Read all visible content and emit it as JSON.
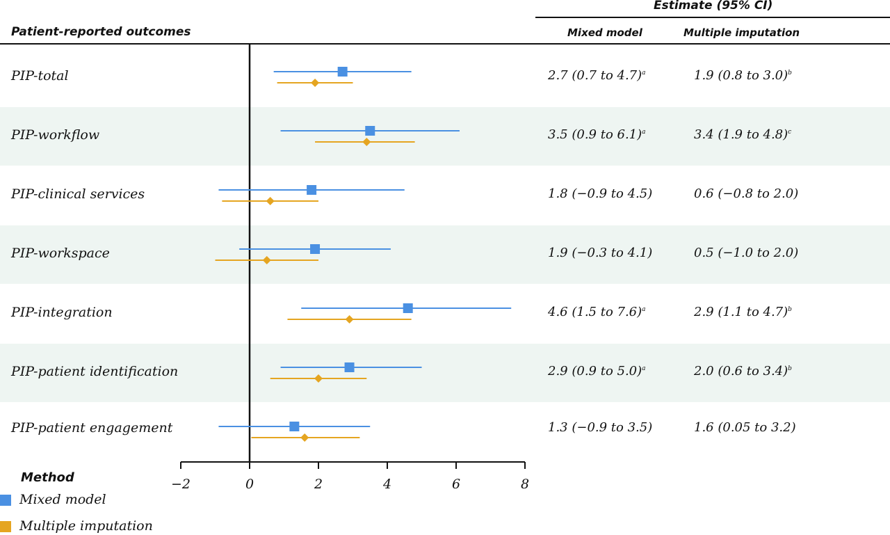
{
  "header": {
    "outcomes_title": "Patient-reported outcomes",
    "estimate_title": "Estimate (95% CI)",
    "col_mixed": "Mixed model",
    "col_mi": "Multiple imputation"
  },
  "colors": {
    "mixed": "#4a90e2",
    "mi": "#e5a521",
    "band": "#eef5f2",
    "axis": "#111111"
  },
  "legend": {
    "title": "Method",
    "items": [
      {
        "label": "Mixed model",
        "color": "#4a90e2"
      },
      {
        "label": "Multiple imputation",
        "color": "#e5a521"
      }
    ]
  },
  "rows": [
    {
      "label": "PIP-total",
      "mm_text": "2.7 (0.7 to 4.7)",
      "mm_sup": "a",
      "mi_text": "1.9 (0.8 to 3.0)",
      "mi_sup": "b"
    },
    {
      "label": "PIP-workflow",
      "mm_text": "3.5 (0.9 to 6.1)",
      "mm_sup": "a",
      "mi_text": "3.4 (1.9 to 4.8)",
      "mi_sup": "c"
    },
    {
      "label": "PIP-clinical services",
      "mm_text": "1.8 (−0.9 to 4.5)",
      "mm_sup": "",
      "mi_text": "0.6 (−0.8 to 2.0)",
      "mi_sup": ""
    },
    {
      "label": "PIP-workspace",
      "mm_text": "1.9 (−0.3 to 4.1)",
      "mm_sup": "",
      "mi_text": "0.5 (−1.0 to 2.0)",
      "mi_sup": ""
    },
    {
      "label": "PIP-integration",
      "mm_text": "4.6 (1.5 to 7.6)",
      "mm_sup": "a",
      "mi_text": "2.9 (1.1 to 4.7)",
      "mi_sup": "b"
    },
    {
      "label": "PIP-patient identification",
      "mm_text": "2.9 (0.9 to 5.0)",
      "mm_sup": "a",
      "mi_text": "2.0 (0.6 to 3.4)",
      "mi_sup": "b"
    },
    {
      "label": "PIP-patient engagement",
      "mm_text": "1.3 (−0.9 to 3.5)",
      "mm_sup": "",
      "mi_text": "1.6 (0.05 to 3.2)",
      "mi_sup": ""
    }
  ],
  "chart_data": {
    "type": "forest",
    "xlim": [
      -2,
      8
    ],
    "x_ticks": [
      -2,
      0,
      2,
      4,
      6,
      8
    ],
    "x_tick_labels": [
      "−2",
      "0",
      "2",
      "4",
      "6",
      "8"
    ],
    "reference_line": 0,
    "categories": [
      "PIP-total",
      "PIP-workflow",
      "PIP-clinical services",
      "PIP-workspace",
      "PIP-integration",
      "PIP-patient identification",
      "PIP-patient engagement"
    ],
    "series": [
      {
        "name": "Mixed model",
        "marker": "square",
        "estimates": [
          2.7,
          3.5,
          1.8,
          1.9,
          4.6,
          2.9,
          1.3
        ],
        "lower": [
          0.7,
          0.9,
          -0.9,
          -0.3,
          1.5,
          0.9,
          -0.9
        ],
        "upper": [
          4.7,
          6.1,
          4.5,
          4.1,
          7.6,
          5.0,
          3.5
        ]
      },
      {
        "name": "Multiple imputation",
        "marker": "diamond",
        "estimates": [
          1.9,
          3.4,
          0.6,
          0.5,
          2.9,
          2.0,
          1.6
        ],
        "lower": [
          0.8,
          1.9,
          -0.8,
          -1.0,
          1.1,
          0.6,
          0.05
        ],
        "upper": [
          3.0,
          4.8,
          2.0,
          2.0,
          4.7,
          3.4,
          3.2
        ]
      }
    ]
  }
}
